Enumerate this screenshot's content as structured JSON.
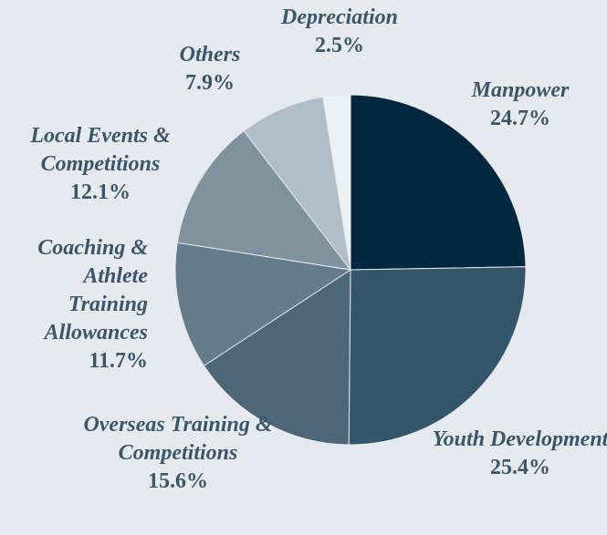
{
  "chart_data": {
    "type": "pie",
    "categories": [
      "Manpower",
      "Youth Development",
      "Overseas Training & Competitions",
      "Coaching & Athlete Training Allowances",
      "Local Events & Competitions",
      "Others",
      "Depreciation"
    ],
    "values": [
      24.7,
      25.4,
      15.6,
      11.7,
      12.1,
      7.9,
      2.5
    ],
    "value_labels": [
      "24.7%",
      "25.4%",
      "15.6%",
      "11.7%",
      "12.1%",
      "7.9%",
      "2.5%"
    ],
    "colors": [
      "#022840",
      "#34566a",
      "#4d6678",
      "#657d8b",
      "#7f939f",
      "#b1bec7",
      "#eef1f4"
    ]
  }
}
